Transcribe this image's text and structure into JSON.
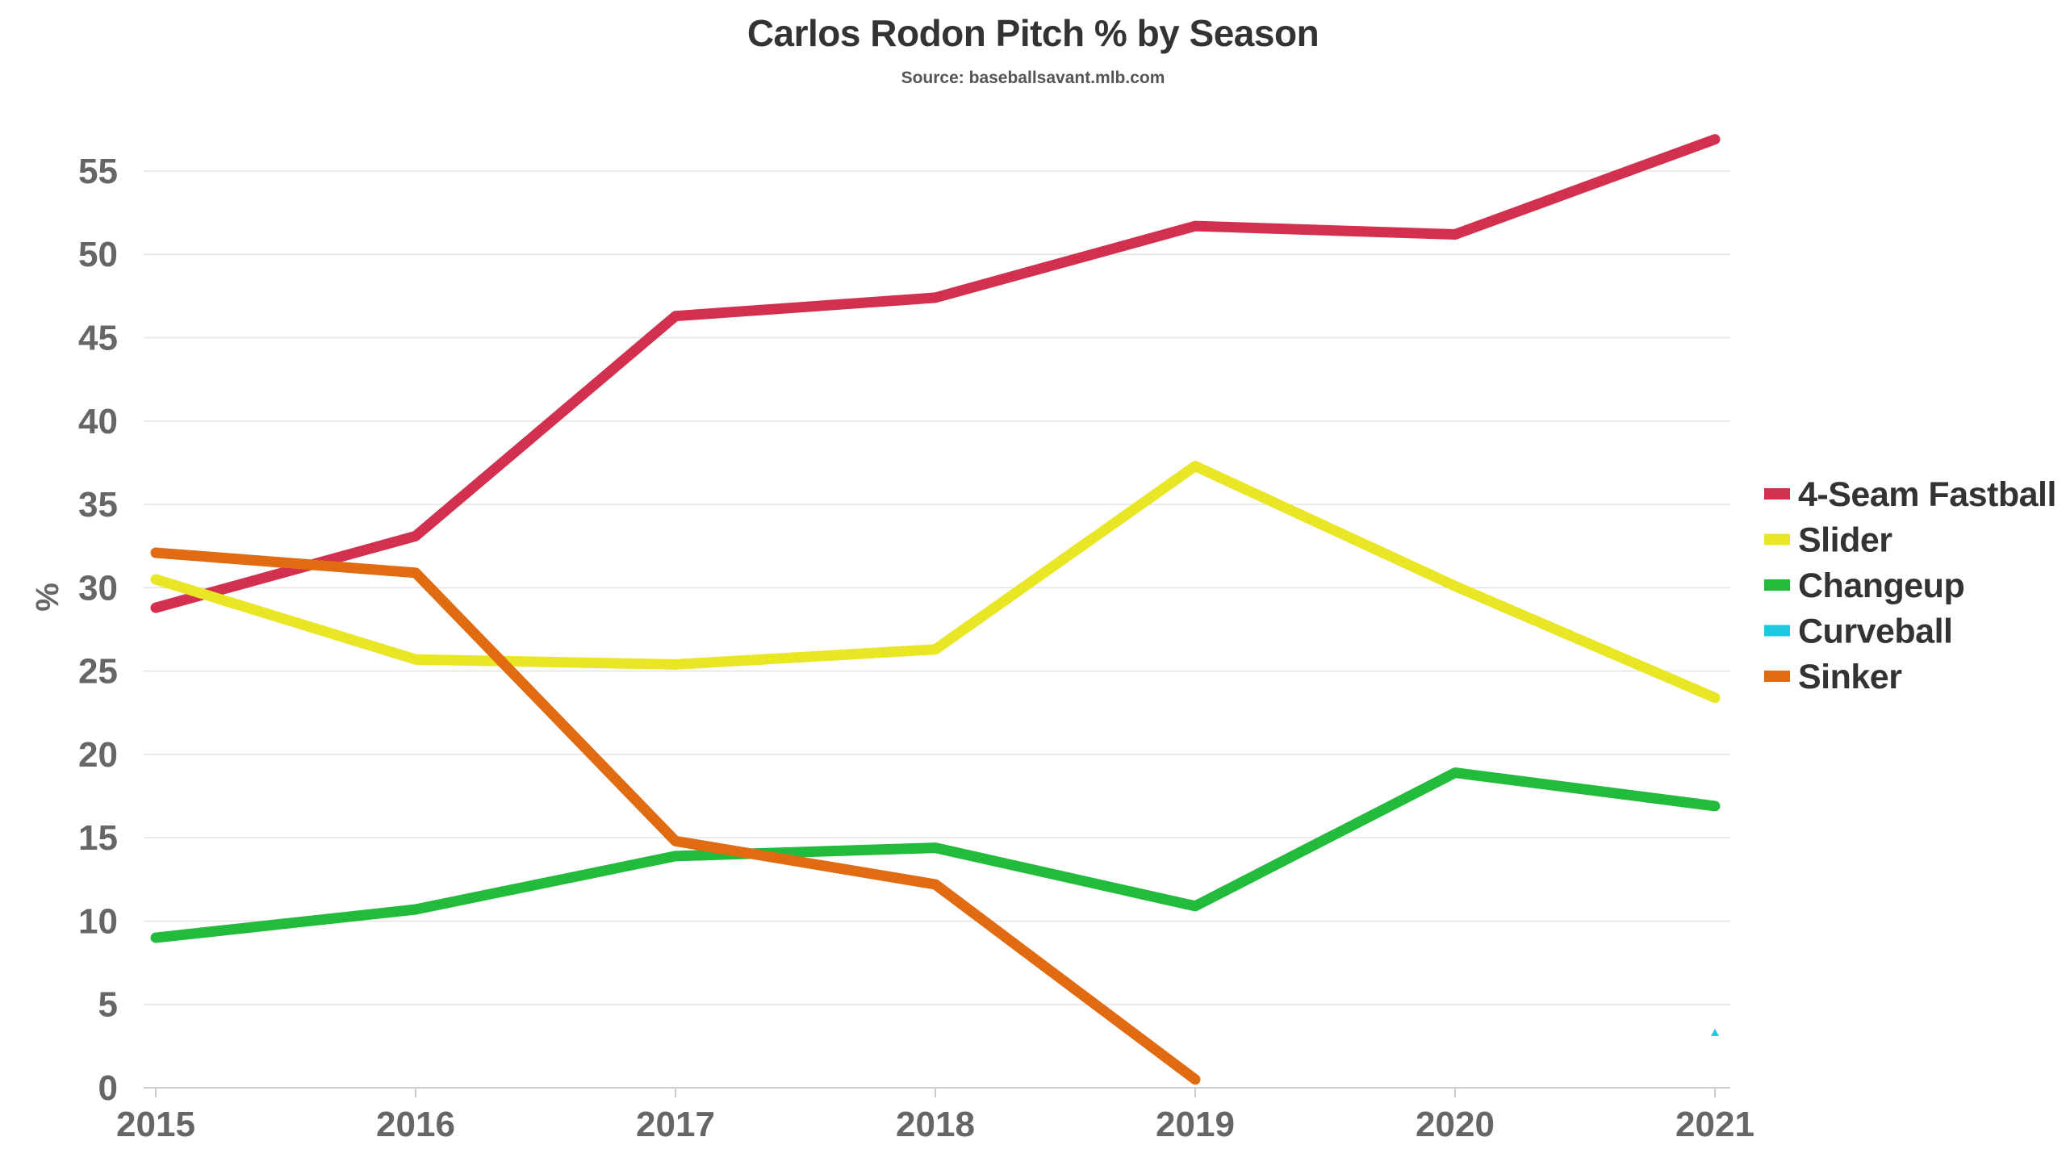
{
  "chart_data": {
    "type": "line",
    "title": "Carlos Rodon Pitch % by Season",
    "subtitle": "Source: baseballsavant.mlb.com",
    "xlabel": "",
    "ylabel": "%",
    "x": [
      "2015",
      "2016",
      "2017",
      "2018",
      "2019",
      "2020",
      "2021"
    ],
    "yticks": [
      "0",
      "5",
      "10",
      "15",
      "20",
      "25",
      "30",
      "35",
      "40",
      "45",
      "50",
      "55"
    ],
    "ylim": [
      0,
      58
    ],
    "grid": true,
    "legend_position": "right",
    "series": [
      {
        "name": "4-Seam Fastball",
        "color": "#d32f4f",
        "values": [
          28.8,
          33.1,
          46.3,
          47.4,
          51.7,
          51.2,
          56.9
        ]
      },
      {
        "name": "Slider",
        "color": "#e8e625",
        "values": [
          30.5,
          25.7,
          25.4,
          26.3,
          37.3,
          30.1,
          23.4
        ]
      },
      {
        "name": "Changeup",
        "color": "#22bb3b",
        "values": [
          9.0,
          10.7,
          13.9,
          14.4,
          10.9,
          18.9,
          16.9
        ]
      },
      {
        "name": "Curveball",
        "color": "#1ec8e0",
        "values": [
          null,
          null,
          null,
          null,
          null,
          null,
          3.3
        ]
      },
      {
        "name": "Sinker",
        "color": "#e06b10",
        "values": [
          32.1,
          30.9,
          14.8,
          12.2,
          0.5,
          null,
          null
        ]
      }
    ]
  }
}
